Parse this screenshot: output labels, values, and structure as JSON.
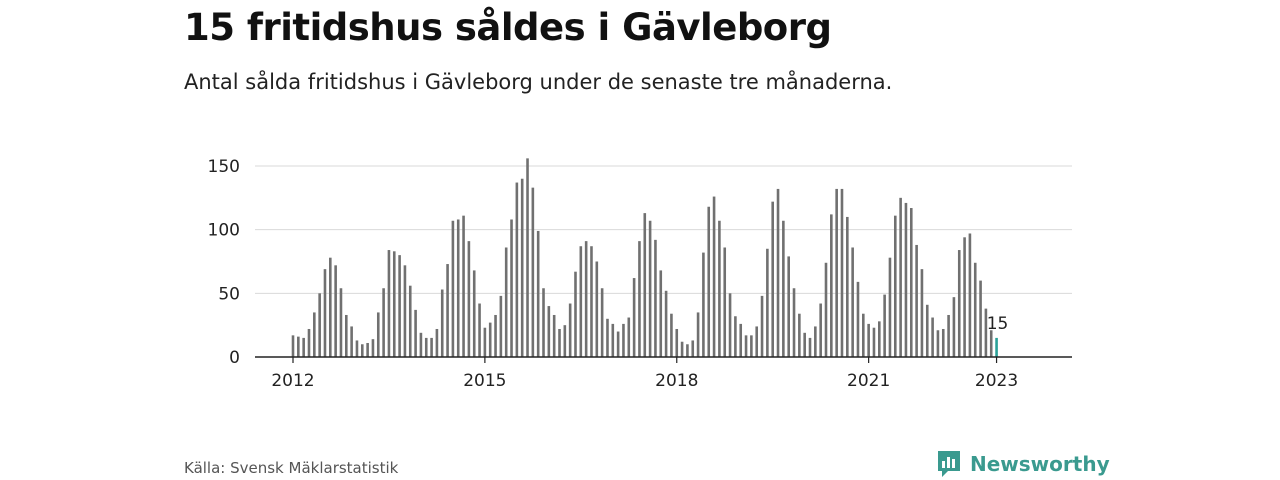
{
  "header": {
    "title": "15 fritidshus såldes i Gävleborg",
    "subtitle": "Antal sålda fritidshus i Gävleborg under de senaste tre månaderna."
  },
  "footer": {
    "source": "Källa: Svensk Mäklarstatistik",
    "brand": "Newsworthy",
    "brand_icon": "newsworthy-logo-icon"
  },
  "colors": {
    "bar": "#707070",
    "highlight": "#2aa198",
    "grid": "#d9d9d9",
    "axis": "#222222",
    "brand": "#3a9a8f"
  },
  "chart_data": {
    "type": "bar",
    "title": "15 fritidshus såldes i Gävleborg",
    "subtitle": "Antal sålda fritidshus i Gävleborg under de senaste tre månaderna.",
    "xlabel": "",
    "ylabel": "",
    "x_start": "2012-01",
    "x_ticks": [
      "2012",
      "2015",
      "2018",
      "2021",
      "2023"
    ],
    "y_ticks": [
      0,
      50,
      100,
      150
    ],
    "ylim": [
      0,
      160
    ],
    "grid": true,
    "highlight_label": "15",
    "values": [
      17,
      16,
      15,
      22,
      35,
      50,
      69,
      78,
      72,
      54,
      33,
      24,
      13,
      10,
      11,
      14,
      35,
      54,
      84,
      83,
      80,
      72,
      56,
      37,
      19,
      15,
      15,
      22,
      53,
      73,
      107,
      108,
      111,
      91,
      68,
      42,
      23,
      27,
      33,
      48,
      86,
      108,
      137,
      140,
      156,
      133,
      99,
      54,
      40,
      33,
      22,
      25,
      42,
      67,
      87,
      91,
      87,
      75,
      54,
      30,
      26,
      20,
      26,
      31,
      62,
      91,
      113,
      107,
      92,
      68,
      52,
      34,
      22,
      12,
      10,
      13,
      35,
      82,
      118,
      126,
      107,
      86,
      50,
      32,
      26,
      17,
      17,
      24,
      48,
      85,
      122,
      132,
      107,
      79,
      54,
      34,
      19,
      15,
      24,
      42,
      74,
      112,
      132,
      132,
      110,
      86,
      59,
      34,
      26,
      23,
      28,
      49,
      78,
      111,
      125,
      121,
      117,
      88,
      69,
      41,
      31,
      21,
      22,
      33,
      47,
      84,
      94,
      97,
      74,
      60,
      38,
      21,
      15
    ]
  }
}
